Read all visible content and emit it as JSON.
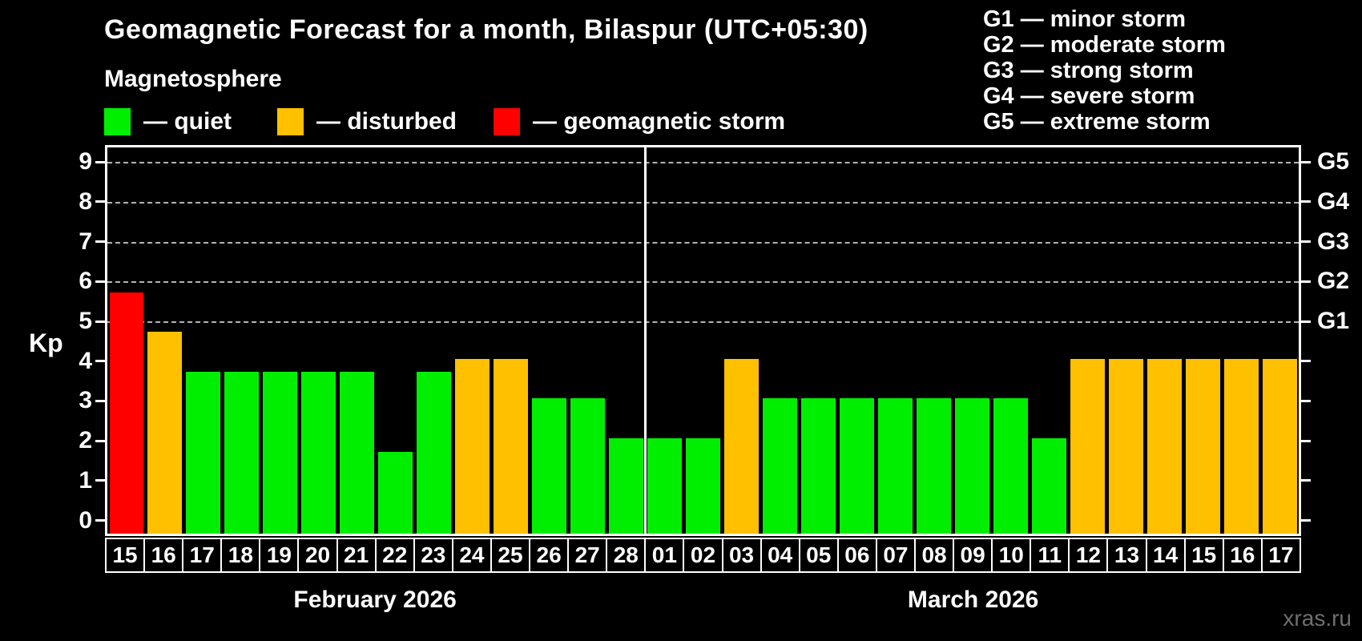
{
  "header": {
    "title": "Geomagnetic Forecast for a month, Bilaspur (UTC+05:30)",
    "subtitle": "Magnetosphere"
  },
  "dash_separator": "—",
  "legend": {
    "items": [
      {
        "label": "quiet",
        "status": "quiet"
      },
      {
        "label": "disturbed",
        "status": "disturbed"
      },
      {
        "label": "geomagnetic storm",
        "status": "storm"
      }
    ],
    "positions_x": [
      130,
      346,
      616
    ]
  },
  "g_legend": [
    {
      "level": "G1",
      "desc": "minor storm"
    },
    {
      "level": "G2",
      "desc": "moderate storm"
    },
    {
      "level": "G3",
      "desc": "strong storm"
    },
    {
      "level": "G4",
      "desc": "severe storm"
    },
    {
      "level": "G5",
      "desc": "extreme storm"
    }
  ],
  "colors": {
    "quiet": "#00ef00",
    "disturbed": "#ffc000",
    "storm": "#ff0000",
    "gridline": "#b3b3b3",
    "axis": "#ffffff",
    "background": "#000000",
    "watermark_text": "#6f6f6f"
  },
  "watermark": "xras.ru",
  "chart_data": {
    "type": "bar",
    "title": "Geomagnetic Forecast for a month, Bilaspur (UTC+05:30)",
    "xlabel": "",
    "ylabel": "Kp",
    "ylim": [
      0,
      9.4
    ],
    "yticks": [
      0,
      1,
      2,
      3,
      4,
      5,
      6,
      7,
      8,
      9
    ],
    "gridlines_at_kp": [
      5,
      6,
      7,
      8,
      9
    ],
    "grid": "dashed-horizontal",
    "legend_position": "top",
    "right_axis_labels": [
      {
        "kp": 5,
        "label": "G1"
      },
      {
        "kp": 6,
        "label": "G2"
      },
      {
        "kp": 7,
        "label": "G3"
      },
      {
        "kp": 8,
        "label": "G4"
      },
      {
        "kp": 9,
        "label": "G5"
      }
    ],
    "months": [
      {
        "label": "February 2026",
        "day_count": 14
      },
      {
        "label": "March 2026",
        "day_count": 17
      }
    ],
    "bars": [
      {
        "date": "15",
        "kp": 5.67,
        "status": "storm"
      },
      {
        "date": "16",
        "kp": 4.67,
        "status": "disturbed"
      },
      {
        "date": "17",
        "kp": 3.67,
        "status": "quiet"
      },
      {
        "date": "18",
        "kp": 3.67,
        "status": "quiet"
      },
      {
        "date": "19",
        "kp": 3.67,
        "status": "quiet"
      },
      {
        "date": "20",
        "kp": 3.67,
        "status": "quiet"
      },
      {
        "date": "21",
        "kp": 3.67,
        "status": "quiet"
      },
      {
        "date": "22",
        "kp": 1.67,
        "status": "quiet"
      },
      {
        "date": "23",
        "kp": 3.67,
        "status": "quiet"
      },
      {
        "date": "24",
        "kp": 4,
        "status": "disturbed"
      },
      {
        "date": "25",
        "kp": 4,
        "status": "disturbed"
      },
      {
        "date": "26",
        "kp": 3,
        "status": "quiet"
      },
      {
        "date": "27",
        "kp": 3,
        "status": "quiet"
      },
      {
        "date": "28",
        "kp": 2,
        "status": "quiet"
      },
      {
        "date": "01",
        "kp": 2,
        "status": "quiet"
      },
      {
        "date": "02",
        "kp": 2,
        "status": "quiet"
      },
      {
        "date": "03",
        "kp": 4,
        "status": "disturbed"
      },
      {
        "date": "04",
        "kp": 3,
        "status": "quiet"
      },
      {
        "date": "05",
        "kp": 3,
        "status": "quiet"
      },
      {
        "date": "06",
        "kp": 3,
        "status": "quiet"
      },
      {
        "date": "07",
        "kp": 3,
        "status": "quiet"
      },
      {
        "date": "08",
        "kp": 3,
        "status": "quiet"
      },
      {
        "date": "09",
        "kp": 3,
        "status": "quiet"
      },
      {
        "date": "10",
        "kp": 3,
        "status": "quiet"
      },
      {
        "date": "11",
        "kp": 2,
        "status": "quiet"
      },
      {
        "date": "12",
        "kp": 4,
        "status": "disturbed"
      },
      {
        "date": "13",
        "kp": 4,
        "status": "disturbed"
      },
      {
        "date": "14",
        "kp": 4,
        "status": "disturbed"
      },
      {
        "date": "15",
        "kp": 4,
        "status": "disturbed"
      },
      {
        "date": "16",
        "kp": 4,
        "status": "disturbed"
      },
      {
        "date": "17",
        "kp": 4,
        "status": "disturbed"
      }
    ]
  }
}
